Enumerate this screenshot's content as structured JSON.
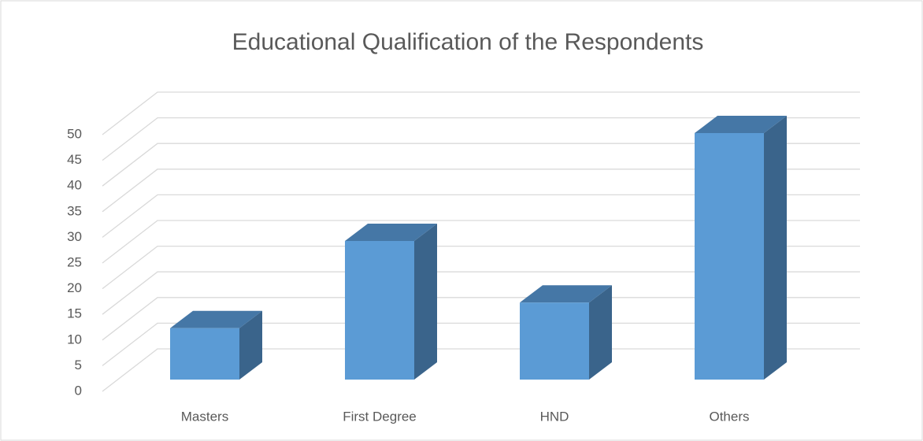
{
  "chart_data": {
    "type": "bar3d",
    "title": "Educational Qualification of the Respondents",
    "categories": [
      "Masters",
      "First Degree",
      "HND",
      "Others"
    ],
    "values": [
      10,
      27,
      15,
      48
    ],
    "color": "#5b9bd5",
    "ylim": [
      0,
      50
    ],
    "yticks": [
      0,
      5,
      10,
      15,
      20,
      25,
      30,
      35,
      40,
      45,
      50
    ],
    "grid": true
  }
}
